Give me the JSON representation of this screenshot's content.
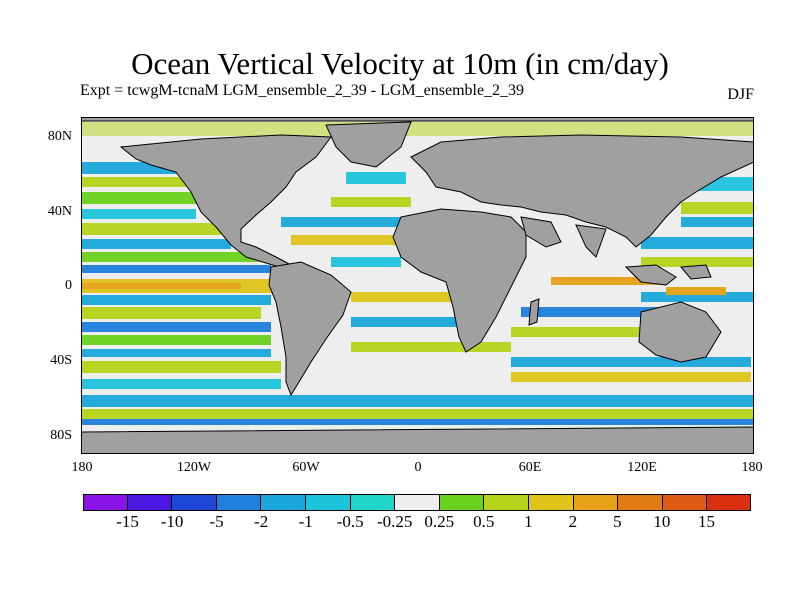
{
  "title": "Ocean Vertical Velocity at 10m (in cm/day)",
  "subtitle": "Expt = tcwgM-tcnaM   LGM_ensemble_2_39 - LGM_ensemble_2_39",
  "season": "DJF",
  "lat_labels": [
    "80N",
    "40N",
    "0",
    "40S",
    "80S"
  ],
  "lon_labels": [
    "180",
    "120W",
    "60W",
    "0",
    "60E",
    "120E",
    "180"
  ],
  "colorbar": {
    "labels": [
      "-15",
      "-10",
      "-5",
      "-2",
      "-1",
      "-0.5",
      "-0.25",
      "0.25",
      "0.5",
      "1",
      "2",
      "5",
      "10",
      "15"
    ],
    "colors": [
      "#8a14e6",
      "#4a18e0",
      "#1f48d8",
      "#1e7fdc",
      "#1aa8dc",
      "#1ec3dc",
      "#20d6c8",
      "#eeeeee",
      "#6ad21c",
      "#b6d41c",
      "#e0c41a",
      "#e6a216",
      "#e27a14",
      "#dc5a12",
      "#d83010"
    ]
  },
  "chart_data": {
    "type": "heatmap",
    "title": "Ocean Vertical Velocity at 10m (in cm/day)",
    "variable": "Ocean vertical velocity at 10m",
    "units": "cm/day",
    "experiment": "Expt = tcwgM-tcnaM",
    "comparison": "LGM_ensemble_2_39 - LGM_ensemble_2_39",
    "season": "DJF",
    "x_ticks": [
      "180",
      "120W",
      "60W",
      "0",
      "60E",
      "120E",
      "180"
    ],
    "y_ticks": [
      "80N",
      "40N",
      "0",
      "40S",
      "80S"
    ],
    "contour_levels": [
      -15,
      -10,
      -5,
      -2,
      -1,
      -0.5,
      -0.25,
      0.25,
      0.5,
      1,
      2,
      5,
      10,
      15
    ],
    "land_color": "#a0a0a0"
  },
  "colors": {
    "land": "#a0a0a0",
    "ocean_base": "#eeeeee"
  }
}
